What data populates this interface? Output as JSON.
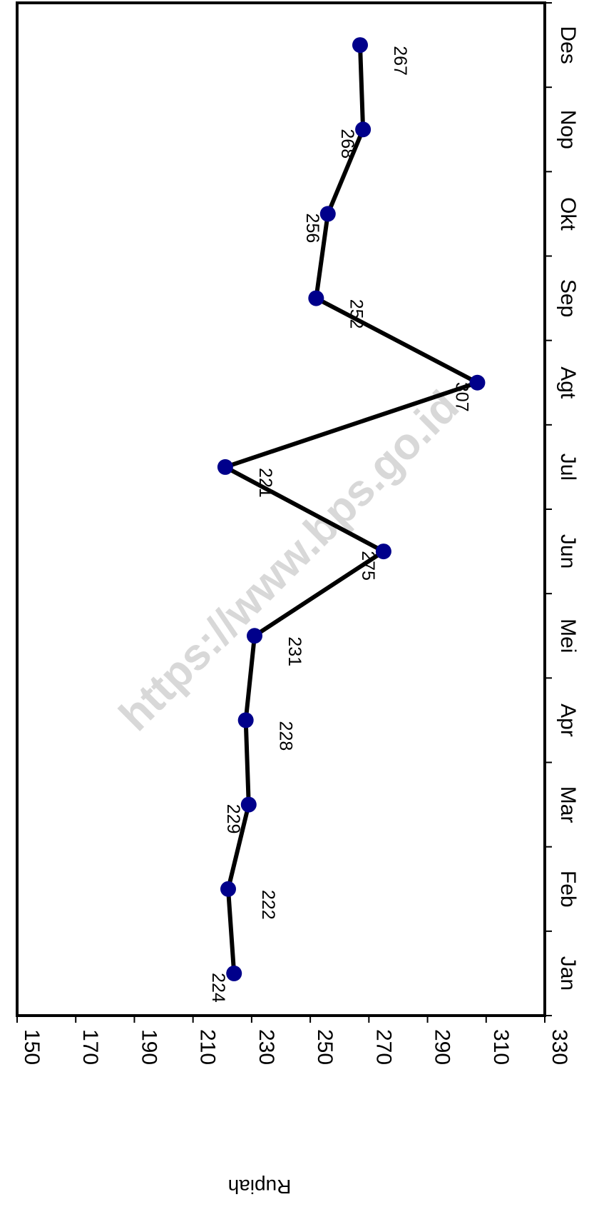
{
  "chart_data": {
    "type": "line",
    "categories": [
      "Jan",
      "Feb",
      "Mar",
      "Apr",
      "Mei",
      "Jun",
      "Jul",
      "Agt",
      "Sep",
      "Okt",
      "Nop",
      "Des"
    ],
    "values": [
      224,
      222,
      229,
      228,
      231,
      275,
      221,
      307,
      252,
      256,
      268,
      267
    ],
    "data_labels": [
      "224",
      "222",
      "229",
      "228",
      "231",
      "275",
      "221",
      "307",
      "252",
      "256",
      "268",
      "267"
    ],
    "ylabel": "Rupiah",
    "ylim": [
      150,
      330
    ],
    "yticks": [
      150,
      170,
      190,
      210,
      230,
      250,
      270,
      290,
      310,
      330
    ],
    "title": "",
    "xlabel": "",
    "orientation": "rotated 90° clockwise",
    "grid": false,
    "legend": "none",
    "line_color": "#000000",
    "marker_color": "#00008b",
    "watermark": "https://www.bps.go.id"
  }
}
